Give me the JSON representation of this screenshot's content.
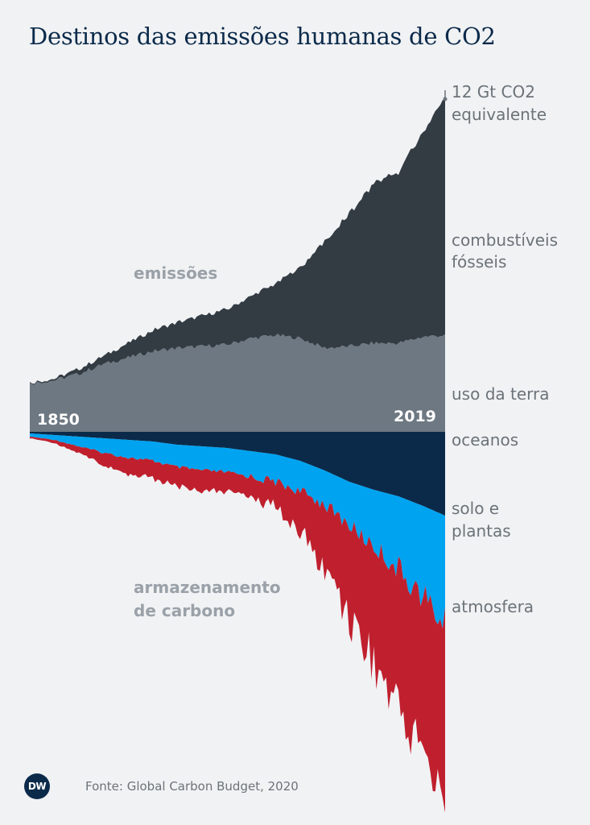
{
  "header": {
    "title": "Destinos das emissões humanas de CO2"
  },
  "footer": {
    "logo_text": "DW",
    "source": "Fonte: Global Carbon Budget, 2020"
  },
  "chart_data": {
    "type": "area",
    "title": "Destinos das emissões humanas de CO2",
    "unit": "Gt CO2 equivalente",
    "scale_marker": {
      "value": 12,
      "label_line1": "12 Gt CO2",
      "label_line2": "equivalente"
    },
    "x_start": 1850,
    "x_end": 2019,
    "start_label": "1850",
    "end_label": "2019",
    "group_labels": {
      "emissions": "emissões",
      "storage_line1": "armazenamento",
      "storage_line2": "de carbono"
    },
    "x_anchor_years": [
      1850,
      1860,
      1870,
      1880,
      1890,
      1900,
      1910,
      1920,
      1930,
      1940,
      1950,
      1960,
      1970,
      1980,
      1990,
      2000,
      2010,
      2019
    ],
    "series": [
      {
        "name": "combustíveis fósseis",
        "label_line1": "combustíveis",
        "label_line2": "fósseis",
        "color": "#333b43",
        "anchors": [
          0.05,
          0.1,
          0.3,
          0.5,
          0.9,
          1.3,
          1.6,
          1.9,
          2.2,
          2.6,
          3.2,
          4.4,
          6.6,
          8.2,
          9.9,
          10.6,
          12.7,
          14.8
        ]
      },
      {
        "name": "uso da terra",
        "label_line1": "uso da terra",
        "color": "#6e7882",
        "anchors": [
          3.0,
          3.2,
          3.6,
          4.2,
          4.6,
          5.0,
          5.2,
          5.3,
          5.4,
          5.8,
          6.0,
          5.8,
          5.2,
          5.3,
          5.5,
          5.5,
          5.9,
          6.0
        ]
      },
      {
        "name": "oceanos",
        "label_line1": "oceanos",
        "color": "#0b2a4a",
        "anchors": [
          0.1,
          0.2,
          0.3,
          0.4,
          0.5,
          0.6,
          0.8,
          0.9,
          1.0,
          1.2,
          1.4,
          1.8,
          2.4,
          3.1,
          3.6,
          4.0,
          4.6,
          5.2
        ]
      },
      {
        "name": "solo e plantas",
        "label_line1": "solo e",
        "label_line2": "plantas",
        "color": "#00a3f0",
        "anchors": [
          0.2,
          0.3,
          0.6,
          0.9,
          1.1,
          1.2,
          1.4,
          1.5,
          1.5,
          1.6,
          1.7,
          1.9,
          2.1,
          2.7,
          3.5,
          4.5,
          5.6,
          6.8
        ]
      },
      {
        "name": "atmosfera",
        "label_line1": "atmosfera",
        "color": "#c0202e",
        "anchors": [
          0.1,
          0.2,
          0.4,
          0.8,
          1.0,
          1.1,
          1.2,
          1.3,
          1.2,
          1.2,
          1.5,
          2.6,
          4.0,
          5.5,
          7.1,
          8.3,
          9.6,
          11.5
        ]
      }
    ]
  }
}
